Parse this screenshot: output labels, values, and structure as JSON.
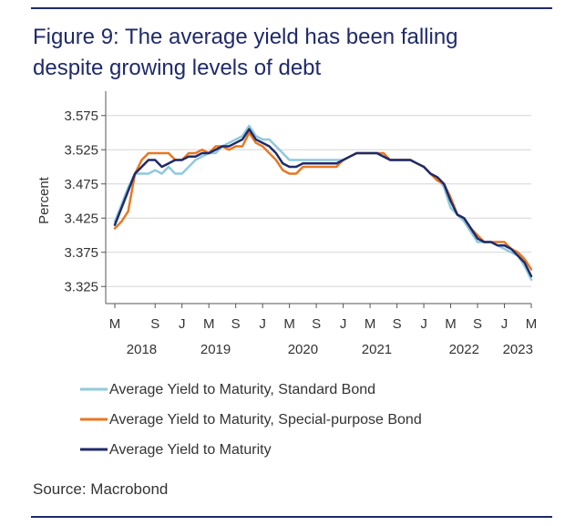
{
  "figure": {
    "title_line1": "Figure 9: The average yield has been falling",
    "title_line2": "despite growing levels of debt",
    "source": "Source: Macrobond"
  },
  "chart_data": {
    "type": "line",
    "ylabel": "Percent",
    "ylim": [
      3.3,
      3.6
    ],
    "yticks": [
      3.325,
      3.375,
      3.425,
      3.475,
      3.525,
      3.575
    ],
    "ytick_labels": [
      "3.325",
      "3.375",
      "3.425",
      "3.475",
      "3.525",
      "3.575"
    ],
    "x_range": [
      "2018-03",
      "2023-05"
    ],
    "x_month_ticks": [
      {
        "label": "M",
        "date": "2018-03"
      },
      {
        "label": "S",
        "date": "2018-09"
      },
      {
        "label": "J",
        "date": "2019-01"
      },
      {
        "label": "M",
        "date": "2019-05"
      },
      {
        "label": "S",
        "date": "2019-09"
      },
      {
        "label": "J",
        "date": "2020-01"
      },
      {
        "label": "M",
        "date": "2020-05"
      },
      {
        "label": "S",
        "date": "2020-09"
      },
      {
        "label": "J",
        "date": "2021-01"
      },
      {
        "label": "M",
        "date": "2021-05"
      },
      {
        "label": "S",
        "date": "2021-09"
      },
      {
        "label": "J",
        "date": "2022-01"
      },
      {
        "label": "M",
        "date": "2022-05"
      },
      {
        "label": "S",
        "date": "2022-09"
      },
      {
        "label": "J",
        "date": "2023-01"
      },
      {
        "label": "M",
        "date": "2023-05"
      }
    ],
    "x_year_labels": [
      {
        "label": "2018",
        "date": "2018-07"
      },
      {
        "label": "2019",
        "date": "2019-06"
      },
      {
        "label": "2020",
        "date": "2020-07"
      },
      {
        "label": "2021",
        "date": "2021-06"
      },
      {
        "label": "2022",
        "date": "2022-07"
      },
      {
        "label": "2023",
        "date": "2023-03"
      }
    ],
    "grid": "horizontal",
    "legend_position": "bottom",
    "series": [
      {
        "name": "Average Yield to Maturity, Standard Bond",
        "color": "#8ec9dc",
        "points": [
          [
            "2018-03",
            3.42
          ],
          [
            "2018-04",
            3.445
          ],
          [
            "2018-05",
            3.47
          ],
          [
            "2018-06",
            3.49
          ],
          [
            "2018-07",
            3.49
          ],
          [
            "2018-08",
            3.49
          ],
          [
            "2018-09",
            3.495
          ],
          [
            "2018-10",
            3.49
          ],
          [
            "2018-11",
            3.5
          ],
          [
            "2018-12",
            3.49
          ],
          [
            "2019-01",
            3.49
          ],
          [
            "2019-02",
            3.5
          ],
          [
            "2019-03",
            3.51
          ],
          [
            "2019-04",
            3.515
          ],
          [
            "2019-05",
            3.52
          ],
          [
            "2019-06",
            3.52
          ],
          [
            "2019-07",
            3.53
          ],
          [
            "2019-08",
            3.535
          ],
          [
            "2019-09",
            3.54
          ],
          [
            "2019-10",
            3.545
          ],
          [
            "2019-11",
            3.56
          ],
          [
            "2019-12",
            3.545
          ],
          [
            "2020-01",
            3.54
          ],
          [
            "2020-02",
            3.54
          ],
          [
            "2020-03",
            3.53
          ],
          [
            "2020-04",
            3.52
          ],
          [
            "2020-05",
            3.51
          ],
          [
            "2020-06",
            3.51
          ],
          [
            "2020-07",
            3.51
          ],
          [
            "2020-08",
            3.51
          ],
          [
            "2020-09",
            3.51
          ],
          [
            "2020-10",
            3.51
          ],
          [
            "2020-11",
            3.51
          ],
          [
            "2020-12",
            3.51
          ],
          [
            "2021-01",
            3.51
          ],
          [
            "2021-02",
            3.515
          ],
          [
            "2021-03",
            3.52
          ],
          [
            "2021-04",
            3.52
          ],
          [
            "2021-05",
            3.52
          ],
          [
            "2021-06",
            3.52
          ],
          [
            "2021-07",
            3.515
          ],
          [
            "2021-08",
            3.51
          ],
          [
            "2021-09",
            3.51
          ],
          [
            "2021-10",
            3.51
          ],
          [
            "2021-11",
            3.51
          ],
          [
            "2021-12",
            3.505
          ],
          [
            "2022-01",
            3.5
          ],
          [
            "2022-02",
            3.49
          ],
          [
            "2022-03",
            3.485
          ],
          [
            "2022-04",
            3.47
          ],
          [
            "2022-05",
            3.44
          ],
          [
            "2022-06",
            3.43
          ],
          [
            "2022-07",
            3.42
          ],
          [
            "2022-08",
            3.405
          ],
          [
            "2022-09",
            3.39
          ],
          [
            "2022-10",
            3.39
          ],
          [
            "2022-11",
            3.39
          ],
          [
            "2022-12",
            3.385
          ],
          [
            "2023-01",
            3.38
          ],
          [
            "2023-02",
            3.375
          ],
          [
            "2023-03",
            3.37
          ],
          [
            "2023-04",
            3.355
          ],
          [
            "2023-05",
            3.335
          ]
        ]
      },
      {
        "name": "Average Yield to Maturity, Special-purpose Bond",
        "color": "#e87722",
        "points": [
          [
            "2018-03",
            3.41
          ],
          [
            "2018-04",
            3.42
          ],
          [
            "2018-05",
            3.435
          ],
          [
            "2018-06",
            3.49
          ],
          [
            "2018-07",
            3.51
          ],
          [
            "2018-08",
            3.52
          ],
          [
            "2018-09",
            3.52
          ],
          [
            "2018-10",
            3.52
          ],
          [
            "2018-11",
            3.52
          ],
          [
            "2018-12",
            3.51
          ],
          [
            "2019-01",
            3.51
          ],
          [
            "2019-02",
            3.52
          ],
          [
            "2019-03",
            3.52
          ],
          [
            "2019-04",
            3.525
          ],
          [
            "2019-05",
            3.52
          ],
          [
            "2019-06",
            3.53
          ],
          [
            "2019-07",
            3.53
          ],
          [
            "2019-08",
            3.525
          ],
          [
            "2019-09",
            3.53
          ],
          [
            "2019-10",
            3.53
          ],
          [
            "2019-11",
            3.55
          ],
          [
            "2019-12",
            3.535
          ],
          [
            "2020-01",
            3.53
          ],
          [
            "2020-02",
            3.52
          ],
          [
            "2020-03",
            3.51
          ],
          [
            "2020-04",
            3.495
          ],
          [
            "2020-05",
            3.49
          ],
          [
            "2020-06",
            3.49
          ],
          [
            "2020-07",
            3.5
          ],
          [
            "2020-08",
            3.5
          ],
          [
            "2020-09",
            3.5
          ],
          [
            "2020-10",
            3.5
          ],
          [
            "2020-11",
            3.5
          ],
          [
            "2020-12",
            3.5
          ],
          [
            "2021-01",
            3.51
          ],
          [
            "2021-02",
            3.515
          ],
          [
            "2021-03",
            3.52
          ],
          [
            "2021-04",
            3.52
          ],
          [
            "2021-05",
            3.52
          ],
          [
            "2021-06",
            3.52
          ],
          [
            "2021-07",
            3.52
          ],
          [
            "2021-08",
            3.51
          ],
          [
            "2021-09",
            3.51
          ],
          [
            "2021-10",
            3.51
          ],
          [
            "2021-11",
            3.51
          ],
          [
            "2021-12",
            3.505
          ],
          [
            "2022-01",
            3.5
          ],
          [
            "2022-02",
            3.49
          ],
          [
            "2022-03",
            3.48
          ],
          [
            "2022-04",
            3.475
          ],
          [
            "2022-05",
            3.455
          ],
          [
            "2022-06",
            3.43
          ],
          [
            "2022-07",
            3.425
          ],
          [
            "2022-08",
            3.41
          ],
          [
            "2022-09",
            3.4
          ],
          [
            "2022-10",
            3.39
          ],
          [
            "2022-11",
            3.39
          ],
          [
            "2022-12",
            3.39
          ],
          [
            "2023-01",
            3.39
          ],
          [
            "2023-02",
            3.38
          ],
          [
            "2023-03",
            3.375
          ],
          [
            "2023-04",
            3.365
          ],
          [
            "2023-05",
            3.35
          ]
        ]
      },
      {
        "name": "Average Yield to Maturity",
        "color": "#1f2a6b",
        "points": [
          [
            "2018-03",
            3.415
          ],
          [
            "2018-04",
            3.44
          ],
          [
            "2018-05",
            3.465
          ],
          [
            "2018-06",
            3.49
          ],
          [
            "2018-07",
            3.5
          ],
          [
            "2018-08",
            3.51
          ],
          [
            "2018-09",
            3.51
          ],
          [
            "2018-10",
            3.5
          ],
          [
            "2018-11",
            3.505
          ],
          [
            "2018-12",
            3.51
          ],
          [
            "2019-01",
            3.51
          ],
          [
            "2019-02",
            3.515
          ],
          [
            "2019-03",
            3.515
          ],
          [
            "2019-04",
            3.52
          ],
          [
            "2019-05",
            3.52
          ],
          [
            "2019-06",
            3.525
          ],
          [
            "2019-07",
            3.53
          ],
          [
            "2019-08",
            3.53
          ],
          [
            "2019-09",
            3.535
          ],
          [
            "2019-10",
            3.54
          ],
          [
            "2019-11",
            3.555
          ],
          [
            "2019-12",
            3.54
          ],
          [
            "2020-01",
            3.535
          ],
          [
            "2020-02",
            3.53
          ],
          [
            "2020-03",
            3.52
          ],
          [
            "2020-04",
            3.505
          ],
          [
            "2020-05",
            3.5
          ],
          [
            "2020-06",
            3.5
          ],
          [
            "2020-07",
            3.505
          ],
          [
            "2020-08",
            3.505
          ],
          [
            "2020-09",
            3.505
          ],
          [
            "2020-10",
            3.505
          ],
          [
            "2020-11",
            3.505
          ],
          [
            "2020-12",
            3.505
          ],
          [
            "2021-01",
            3.51
          ],
          [
            "2021-02",
            3.515
          ],
          [
            "2021-03",
            3.52
          ],
          [
            "2021-04",
            3.52
          ],
          [
            "2021-05",
            3.52
          ],
          [
            "2021-06",
            3.52
          ],
          [
            "2021-07",
            3.515
          ],
          [
            "2021-08",
            3.51
          ],
          [
            "2021-09",
            3.51
          ],
          [
            "2021-10",
            3.51
          ],
          [
            "2021-11",
            3.51
          ],
          [
            "2021-12",
            3.505
          ],
          [
            "2022-01",
            3.5
          ],
          [
            "2022-02",
            3.49
          ],
          [
            "2022-03",
            3.485
          ],
          [
            "2022-04",
            3.475
          ],
          [
            "2022-05",
            3.45
          ],
          [
            "2022-06",
            3.43
          ],
          [
            "2022-07",
            3.425
          ],
          [
            "2022-08",
            3.41
          ],
          [
            "2022-09",
            3.395
          ],
          [
            "2022-10",
            3.39
          ],
          [
            "2022-11",
            3.39
          ],
          [
            "2022-12",
            3.385
          ],
          [
            "2023-01",
            3.385
          ],
          [
            "2023-02",
            3.38
          ],
          [
            "2023-03",
            3.37
          ],
          [
            "2023-04",
            3.36
          ],
          [
            "2023-05",
            3.34
          ]
        ]
      }
    ]
  }
}
